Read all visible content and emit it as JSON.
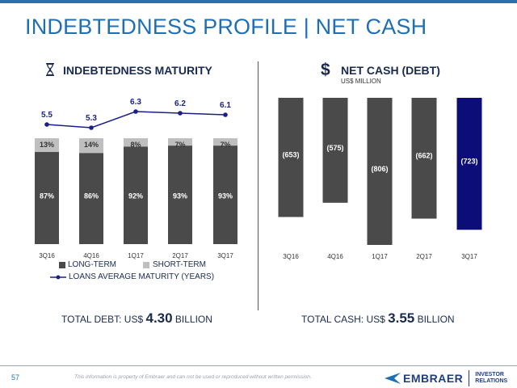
{
  "page": {
    "title": "INDEBTEDNESS PROFILE | NET CASH",
    "number": "57",
    "disclaimer": "This information is property of Embraer and can not be used or reproduced without written permission.",
    "logo": {
      "name": "EMBRAER",
      "unit_line1": "INVESTOR",
      "unit_line2": "RELATIONS"
    }
  },
  "left": {
    "title": "INDEBTEDNESS MATURITY",
    "icon": "hourglass-icon",
    "legend": {
      "long": "LONG-TERM",
      "short": "SHORT-TERM",
      "line": "LOANS AVERAGE MATURITY (YEARS)"
    },
    "total_prefix": "TOTAL DEBT: US$ ",
    "total_value": "4.30",
    "total_suffix": " BILLION"
  },
  "right": {
    "title": "NET CASH (DEBT)",
    "subtitle": "US$ MILLION",
    "icon": "dollar-icon",
    "total_prefix": "TOTAL CASH: US$ ",
    "total_value": "3.55",
    "total_suffix": " BILLION"
  },
  "colors": {
    "title": "#1f6fb5",
    "long_term": "#4a4a4a",
    "short_term": "#bfbfbf",
    "maturity_line": "#1b1f8a",
    "net_cash_bar": "#4a4a4a",
    "net_cash_highlight": "#0d0d7a"
  },
  "chart_data": [
    {
      "type": "bar",
      "stacked": true,
      "categories": [
        "3Q16",
        "4Q16",
        "1Q17",
        "2Q17",
        "3Q17"
      ],
      "series": [
        {
          "name": "LONG-TERM",
          "values": [
            87,
            86,
            92,
            93,
            93
          ],
          "labels": [
            "87%",
            "86%",
            "92%",
            "93%",
            "93%"
          ]
        },
        {
          "name": "SHORT-TERM",
          "values": [
            13,
            14,
            8,
            7,
            7
          ],
          "labels": [
            "13%",
            "14%",
            "8%",
            "7%",
            "7%"
          ]
        }
      ],
      "line_series": {
        "name": "LOANS AVERAGE MATURITY (YEARS)",
        "values": [
          5.5,
          5.3,
          6.3,
          6.2,
          6.1
        ],
        "labels": [
          "5.5",
          "5.3",
          "6.3",
          "6.2",
          "6.1"
        ]
      },
      "ylim": [
        0,
        100
      ],
      "legend_position": "bottom"
    },
    {
      "type": "bar",
      "categories": [
        "3Q16",
        "4Q16",
        "1Q17",
        "2Q17",
        "3Q17"
      ],
      "values": [
        -653,
        -575,
        -806,
        -662,
        -723
      ],
      "labels": [
        "(653)",
        "(575)",
        "(806)",
        "(662)",
        "(723)"
      ],
      "highlight": "3Q17",
      "ylim": [
        -806,
        0
      ]
    }
  ]
}
